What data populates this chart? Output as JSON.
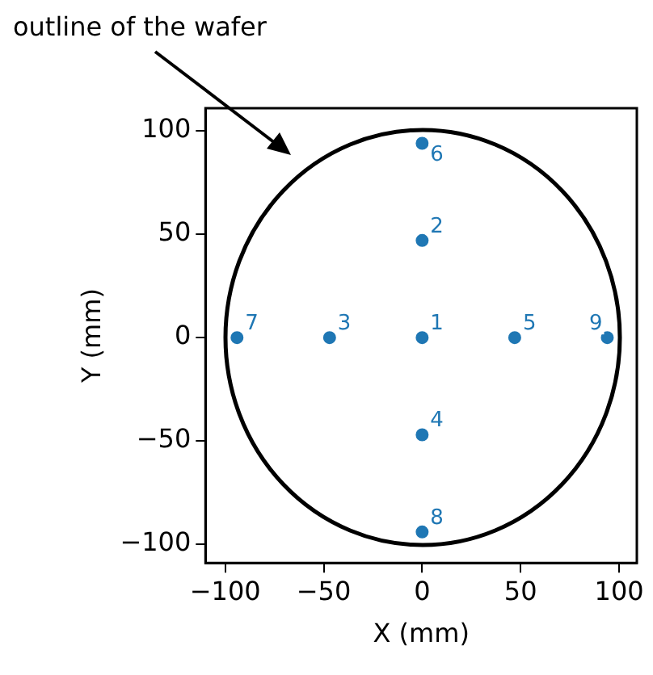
{
  "chart_data": {
    "type": "scatter",
    "xlabel": "X (mm)",
    "ylabel": "Y (mm)",
    "xlim": [
      -110,
      109
    ],
    "ylim": [
      -109,
      111
    ],
    "xticks": [
      -100,
      -50,
      0,
      50,
      100
    ],
    "yticks": [
      -100,
      -50,
      0,
      50,
      100
    ],
    "grid": false,
    "legend": false,
    "annotations": [
      "outline of the wafer",
      {
        "text": "1",
        "x": 0,
        "y": 0
      },
      {
        "text": "2",
        "x": 0,
        "y": 47
      },
      {
        "text": "3",
        "x": -47,
        "y": 0
      },
      {
        "text": "4",
        "x": 0,
        "y": -47
      },
      {
        "text": "5",
        "x": 47,
        "y": 0
      },
      {
        "text": "6",
        "x": 0,
        "y": 94
      },
      {
        "text": "7",
        "x": -94,
        "y": 0
      },
      {
        "text": "8",
        "x": 0,
        "y": -94
      },
      {
        "text": "9",
        "x": 94,
        "y": 0
      }
    ],
    "series": [
      {
        "color": "#1f77b4",
        "marker": "circle",
        "x": [
          0,
          0,
          -47,
          0,
          47,
          0,
          -94,
          0,
          94
        ],
        "values": [
          0,
          47,
          0,
          -47,
          0,
          94,
          0,
          -94,
          0
        ]
      }
    ]
  }
}
